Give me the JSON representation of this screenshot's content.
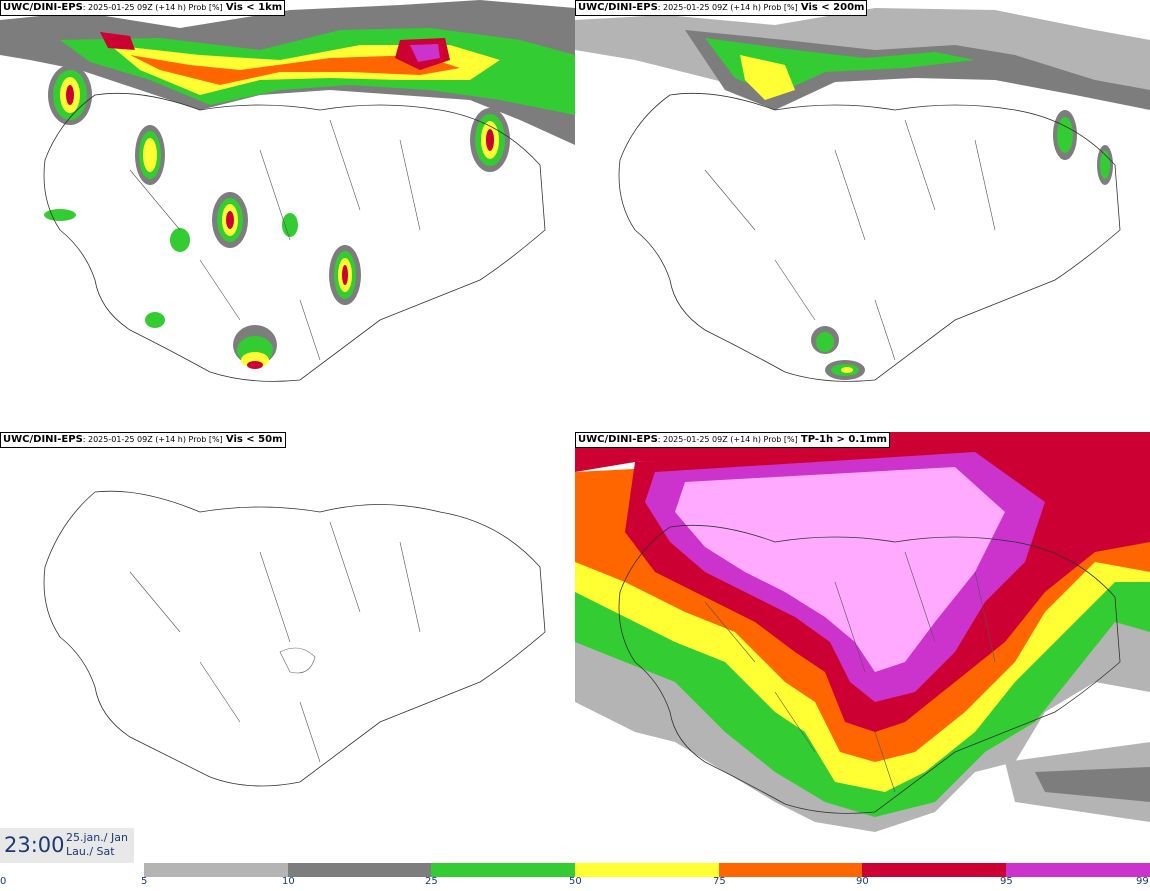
{
  "panels": [
    {
      "source": "UWC/DINI-EPS",
      "meta": ": 2025-01-25 09Z (+14 h) Prob [%]",
      "variable": "Vis < 1km"
    },
    {
      "source": "UWC/DINI-EPS",
      "meta": ": 2025-01-25 09Z (+14 h) Prob [%]",
      "variable": "Vis < 200m"
    },
    {
      "source": "UWC/DINI-EPS",
      "meta": ": 2025-01-25 09Z (+14 h) Prob [%]",
      "variable": "Vis < 50m"
    },
    {
      "source": "UWC/DINI-EPS",
      "meta": ": 2025-01-25 09Z (+14 h) Prob [%]",
      "variable": "TP-1h > 0.1mm"
    }
  ],
  "valid_time": {
    "time": "23:00",
    "date_line1": "25.jan./ Jan",
    "date_line2": "Lau./ Sat"
  },
  "legend": {
    "ticks": [
      "0",
      "5",
      "10",
      "25",
      "50",
      "75",
      "90",
      "95",
      "99"
    ],
    "colors": [
      "#ffffff",
      "#b4b4b4",
      "#7d7d7d",
      "#33cc33",
      "#ffff33",
      "#ff6600",
      "#cc0033",
      "#cc33cc",
      "#ffaaff"
    ]
  }
}
